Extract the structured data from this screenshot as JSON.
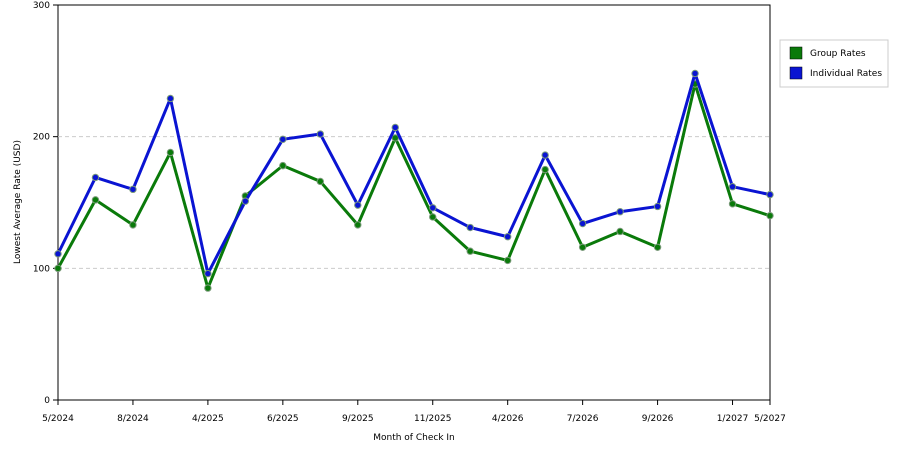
{
  "chart_data": {
    "type": "line",
    "x_label": "Month of Check In",
    "y_label": "Lowest Average Rate (USD)",
    "categories": [
      "5/2024",
      null,
      "8/2024",
      null,
      "4/2025",
      null,
      "6/2025",
      null,
      "9/2025",
      null,
      "11/2025",
      null,
      "4/2026",
      null,
      "7/2026",
      null,
      "9/2026",
      null,
      "1/2027",
      "5/2027"
    ],
    "series": [
      {
        "name": "Group Rates",
        "color": "#0a7a0a",
        "values": [
          100,
          152,
          133,
          188,
          85,
          155,
          178,
          166,
          133,
          199,
          139,
          113,
          106,
          175,
          116,
          128,
          116,
          240,
          149,
          140
        ]
      },
      {
        "name": "Individual Rates",
        "color": "#0a14d2",
        "values": [
          111,
          169,
          160,
          229,
          96,
          151,
          198,
          202,
          148,
          207,
          146,
          131,
          124,
          186,
          134,
          143,
          147,
          248,
          162,
          156
        ]
      }
    ],
    "ylim": [
      0,
      300
    ],
    "yticks": [
      0,
      100,
      200,
      300
    ],
    "grid": true,
    "legend": "right"
  }
}
